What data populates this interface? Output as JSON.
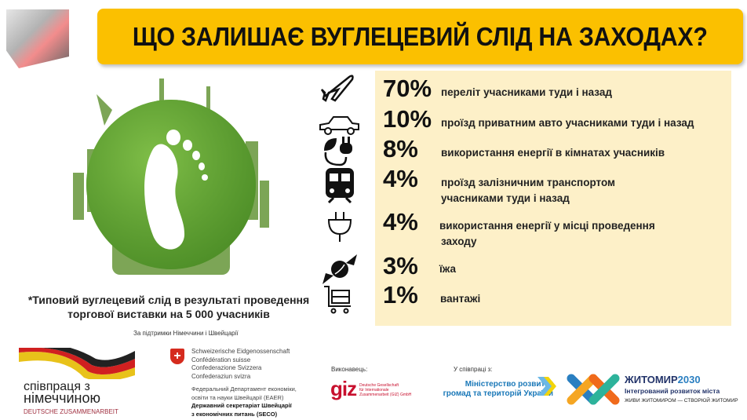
{
  "header": {
    "title": "ЩО ЗАЛИШАЄ ВУГЛЕЦЕВИЙ СЛІД НА ЗАХОДАХ?"
  },
  "items": [
    {
      "icon": "airplane-icon",
      "percent": "70%",
      "label": "переліт учасниками туди і назад"
    },
    {
      "icon": "car-icon",
      "percent": "10%",
      "label": "проїзд приватним авто учасниками туди і  назад"
    },
    {
      "icon": "leaf-plug-icon",
      "percent": "8%",
      "label": "використання енергії в кімнатах учасників"
    },
    {
      "icon": "train-icon",
      "percent": "4%",
      "label": "проїзд залізничним транспортом",
      "label2": "учасниками туди і назад"
    },
    {
      "icon": "plug-icon",
      "percent": "4%",
      "label": "використання енергії у місці проведення",
      "label2": "заходу"
    },
    {
      "icon": "candy-icon",
      "percent": "3%",
      "label": "їжа"
    },
    {
      "icon": "cart-icon",
      "percent": "1%",
      "label": "вантажі"
    }
  ],
  "caption": {
    "line1": "*Типовий вуглецевий слід в результаті проведення",
    "line2": "торгової виставки на 5 000 учасників"
  },
  "footer": {
    "support": "За підтримки Німеччини і Швейцарії",
    "germany": {
      "line1": "співпраця з",
      "line2": "німеччиною",
      "line3": "DEUTSCHE ZUSAMMENARBEIT"
    },
    "swiss": {
      "lines": [
        "Schweizerische Eidgenossenschaft",
        "Confédération suisse",
        "Confederazione Svizzera",
        "Confederaziun svizra"
      ],
      "dept1": "Федеральний Департамент економіки,",
      "dept2": "освіти та науки Швейцарії (EAER)",
      "seco1": "Державний секретаріат Швейцарії",
      "seco2": "з економічних питань (SECO)"
    },
    "executor": "Виконавець:",
    "giz": {
      "logo": "giz",
      "l1": "Deutsche Gesellschaft",
      "l2": "für Internationale",
      "l3": "Zusammenarbeit (GIZ) GmbH"
    },
    "cooperation": "У співпраці з:",
    "ministry": {
      "l1": "Міністерство розвитку",
      "l2": "громад та територій України"
    },
    "zhytomyr": {
      "title": "ЖИТОМИР",
      "year": "2030",
      "sub": "Інтегрований розвиток міста",
      "slogan": "ЖИВИ ЖИТОМИРОМ — СТВОРЮЙ ЖИТОМИР"
    }
  },
  "colors": {
    "banner": "#fbc000",
    "panel": "#fdf0c8",
    "globe": "#5aa02c"
  }
}
